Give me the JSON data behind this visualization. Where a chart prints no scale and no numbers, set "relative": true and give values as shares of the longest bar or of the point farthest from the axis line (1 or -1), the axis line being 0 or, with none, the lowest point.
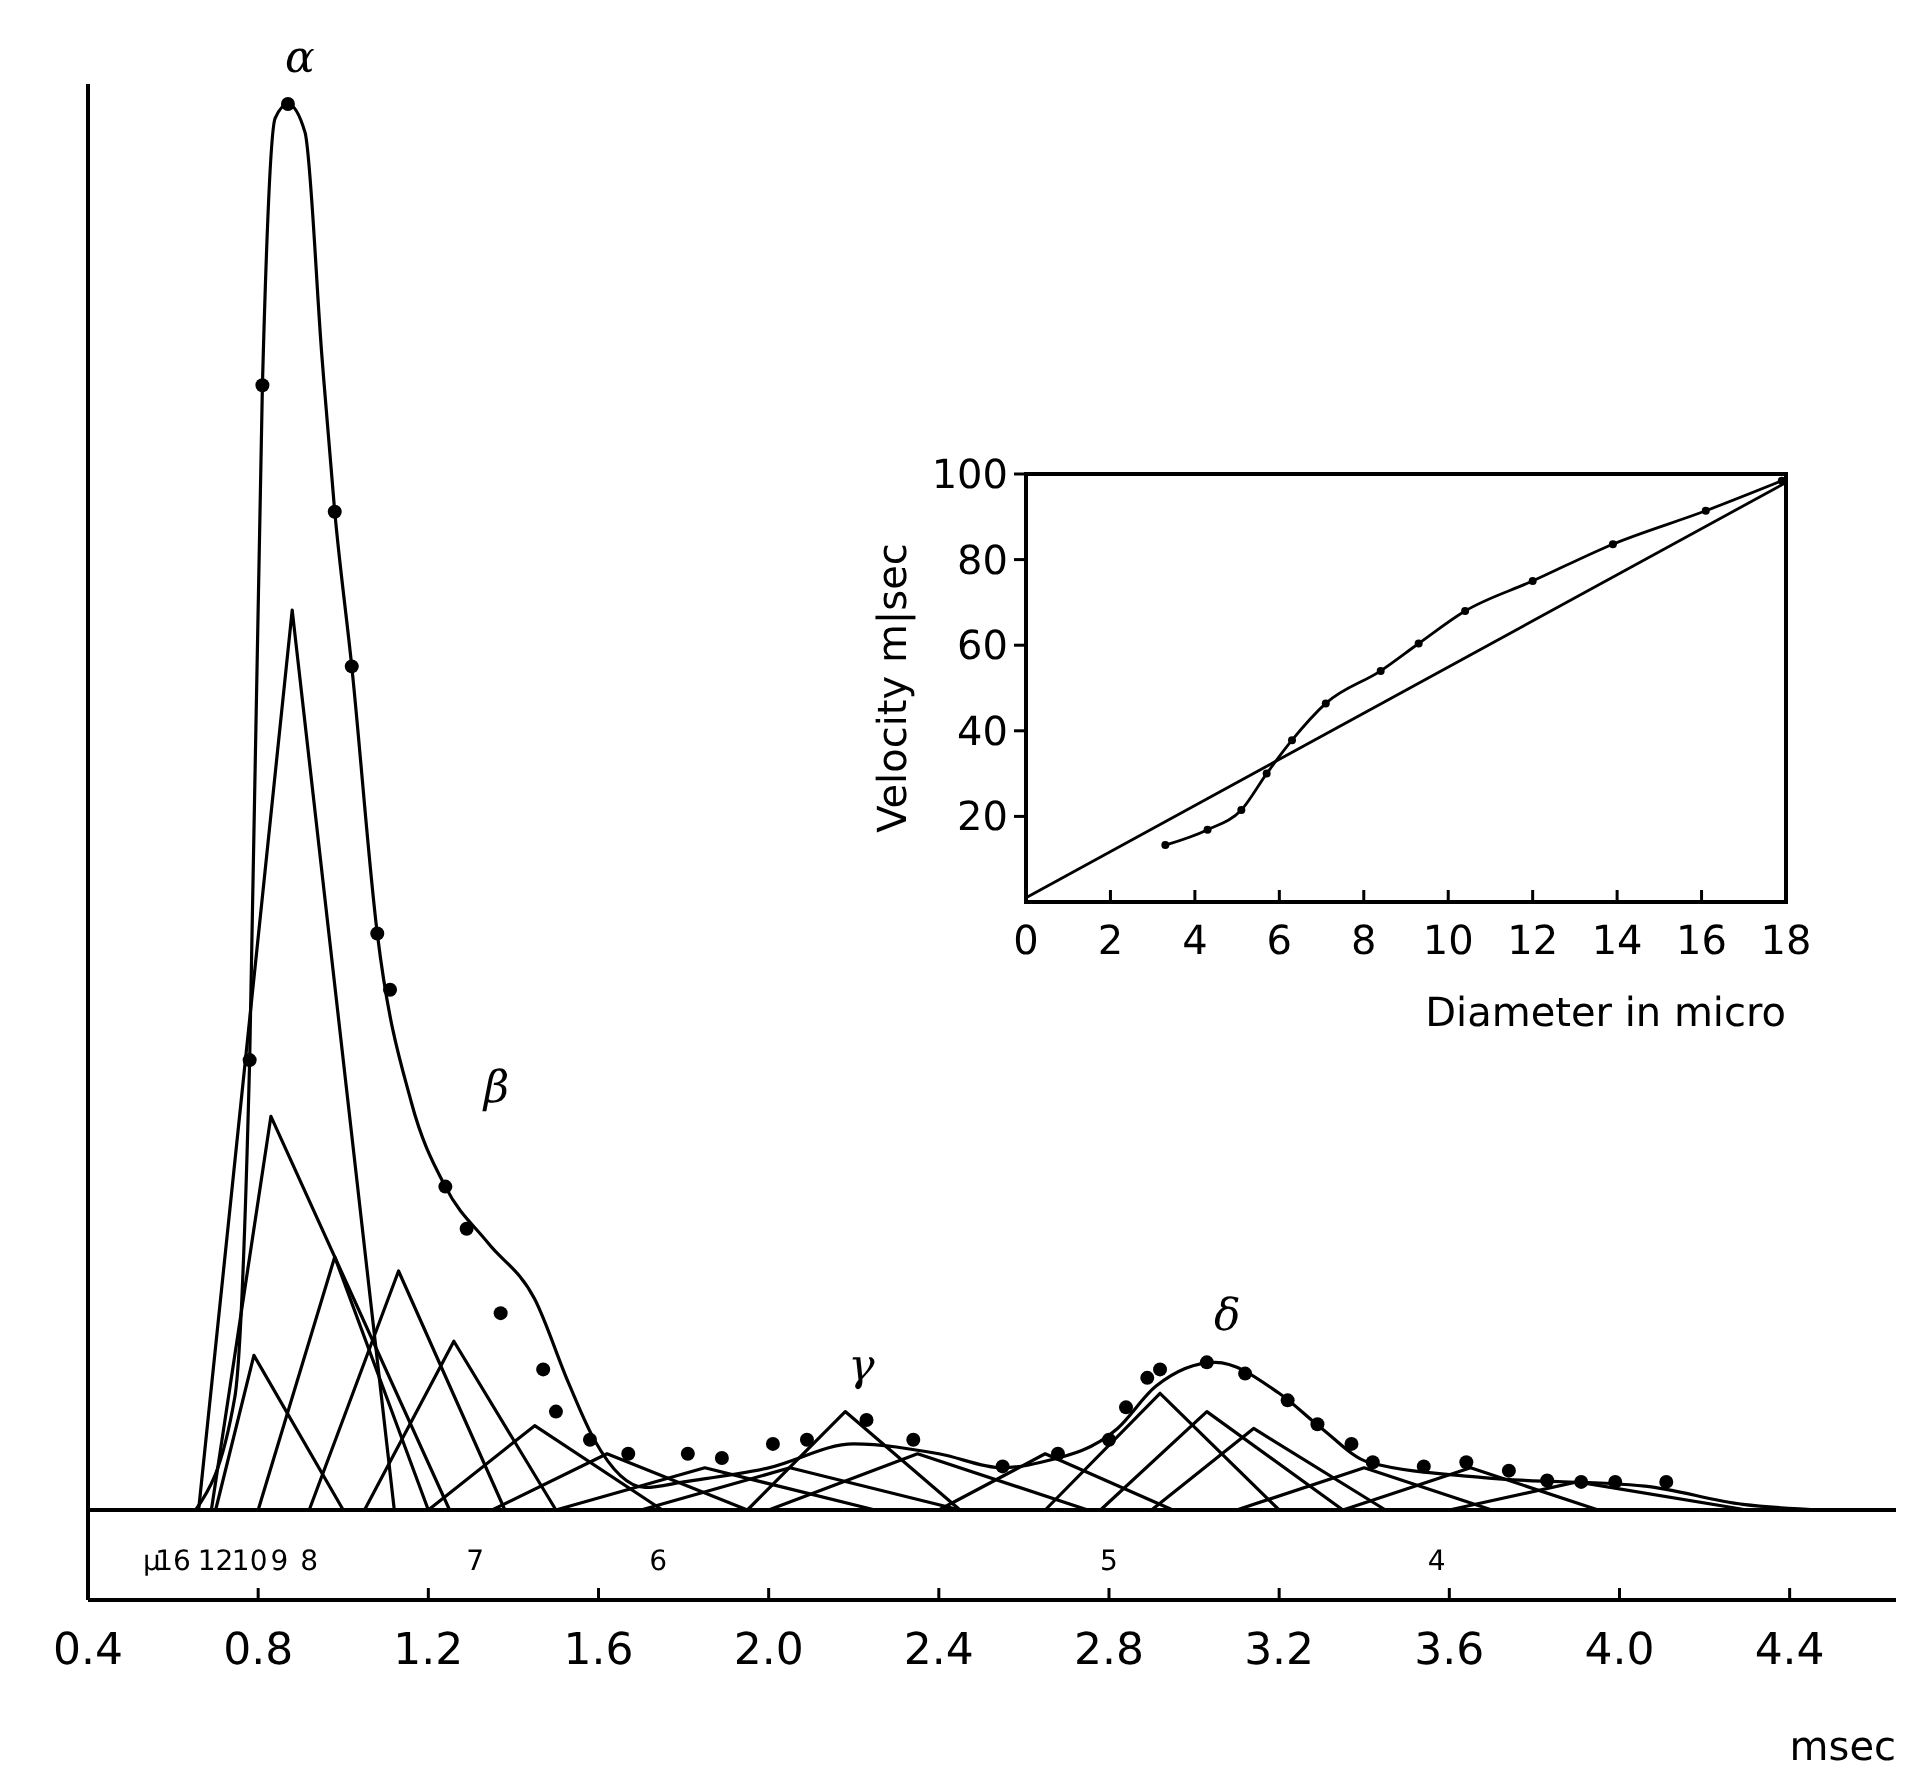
{
  "chart_data": [
    {
      "type": "line",
      "relative": true,
      "xlabel": "msec",
      "xlim": [
        0.4,
        4.65
      ],
      "xticks": [
        0.4,
        0.8,
        1.2,
        1.6,
        {
          "value": 2,
          "label": "2.0"
        },
        2.4,
        2.8,
        3.2,
        3.6,
        {
          "value": 4,
          "label": "4.0"
        },
        4.4
      ],
      "annotations": [
        {
          "text": "α",
          "x": 0.87,
          "y": 1.0
        },
        "β",
        {
          "text": "γ",
          "x": 2.19,
          "y": 0.07
        },
        {
          "text": "δ",
          "x": 3.05,
          "y": 0.105
        },
        "µ",
        "16",
        "12",
        "10",
        "9",
        "8",
        "7",
        "6",
        "5",
        "4"
      ],
      "series": [
        {
          "color": "#000000",
          "x": [
            0.653,
            0.745,
            0.78,
            0.81,
            0.84,
            0.87,
            0.91,
            0.95,
            0.98,
            1.02,
            1.08,
            1.16,
            1.24,
            1.34,
            1.45,
            1.53,
            1.59,
            1.71,
            1.8,
            2.0,
            2.2,
            2.4,
            2.55,
            2.64,
            2.82,
            2.91,
            3.05,
            3.2,
            3.3,
            3.41,
            3.68,
            4.06,
            4.29,
            4.48
          ],
          "values": [
            0,
            0.08,
            0.32,
            0.8,
            0.99,
            1.0,
            0.98,
            0.82,
            0.71,
            0.6,
            0.41,
            0.29,
            0.23,
            0.19,
            0.15,
            0.09,
            0.05,
            0.016,
            0.02,
            0.03,
            0.047,
            0.04,
            0.03,
            0.034,
            0.058,
            0.088,
            0.105,
            0.083,
            0.058,
            0.034,
            0.023,
            0.017,
            0.004,
            0
          ]
        },
        {
          "type": "scatter",
          "marker": "circle",
          "color": "#000000",
          "x": [
            0.78,
            0.81,
            0.87,
            0.98,
            1.02,
            1.08,
            1.11,
            1.24,
            1.29,
            1.37,
            1.47,
            1.5,
            1.58,
            1.67,
            1.81,
            1.89,
            2.01,
            2.09,
            2.23,
            2.34,
            2.55,
            2.68,
            2.8,
            2.84,
            2.89,
            2.92,
            3.03,
            3.12,
            3.22,
            3.29,
            3.37,
            3.42,
            3.54,
            3.64,
            3.74,
            3.83,
            3.91,
            3.99,
            4.11
          ],
          "values": [
            0.32,
            0.8,
            1.0,
            0.71,
            0.6,
            0.41,
            0.37,
            0.23,
            0.2,
            0.14,
            0.1,
            0.07,
            0.05,
            0.04,
            0.04,
            0.037,
            0.047,
            0.05,
            0.064,
            0.05,
            0.031,
            0.04,
            0.05,
            0.073,
            0.094,
            0.1,
            0.105,
            0.097,
            0.078,
            0.061,
            0.047,
            0.034,
            0.031,
            0.034,
            0.028,
            0.021,
            0.02,
            0.02,
            0.02
          ]
        },
        {
          "type": "line",
          "color": "#000000",
          "x": [
            0.66,
            0.88,
            1.12
          ],
          "values": [
            0,
            0.64,
            0
          ]
        },
        {
          "type": "line",
          "color": "#000000",
          "x": [
            0.69,
            0.83,
            1.25
          ],
          "values": [
            0,
            0.28,
            0
          ]
        },
        {
          "type": "line",
          "color": "#000000",
          "x": [
            0.7,
            0.79,
            1.0
          ],
          "values": [
            0,
            0.11,
            0
          ]
        },
        {
          "type": "line",
          "color": "#000000",
          "x": [
            0.8,
            0.98,
            1.2
          ],
          "values": [
            0,
            0.18,
            0
          ]
        },
        {
          "type": "line",
          "color": "#000000",
          "x": [
            0.92,
            1.13,
            1.38
          ],
          "values": [
            0,
            0.17,
            0
          ]
        },
        {
          "type": "line",
          "color": "#000000",
          "x": [
            1.05,
            1.26,
            1.5
          ],
          "values": [
            0,
            0.12,
            0
          ]
        },
        {
          "type": "line",
          "color": "#000000",
          "x": [
            1.2,
            1.45,
            1.75
          ],
          "values": [
            0,
            0.06,
            0
          ]
        },
        {
          "type": "line",
          "color": "#000000",
          "x": [
            1.35,
            1.62,
            1.95
          ],
          "values": [
            0,
            0.04,
            0
          ]
        },
        {
          "type": "line",
          "color": "#000000",
          "x": [
            1.5,
            1.85,
            2.25
          ],
          "values": [
            0,
            0.03,
            0
          ]
        },
        {
          "type": "line",
          "color": "#000000",
          "x": [
            1.7,
            2.05,
            2.45
          ],
          "values": [
            0,
            0.03,
            0
          ]
        },
        {
          "type": "line",
          "color": "#000000",
          "x": [
            1.95,
            2.18,
            2.45
          ],
          "values": [
            0,
            0.07,
            0
          ]
        },
        {
          "type": "line",
          "color": "#000000",
          "x": [
            2.0,
            2.35,
            2.75
          ],
          "values": [
            0,
            0.04,
            0
          ]
        },
        {
          "type": "line",
          "color": "#000000",
          "x": [
            2.4,
            2.65,
            2.95
          ],
          "values": [
            0,
            0.04,
            0
          ]
        },
        {
          "type": "line",
          "color": "#000000",
          "x": [
            2.65,
            2.92,
            3.2
          ],
          "values": [
            0,
            0.083,
            0
          ]
        },
        {
          "type": "line",
          "color": "#000000",
          "x": [
            2.78,
            3.03,
            3.35
          ],
          "values": [
            0,
            0.07,
            0
          ]
        },
        {
          "type": "line",
          "color": "#000000",
          "x": [
            2.9,
            3.14,
            3.45
          ],
          "values": [
            0,
            0.058,
            0
          ]
        },
        {
          "type": "line",
          "color": "#000000",
          "x": [
            3.1,
            3.4,
            3.7
          ],
          "values": [
            0,
            0.03,
            0
          ]
        },
        {
          "type": "line",
          "color": "#000000",
          "x": [
            3.35,
            3.65,
            3.95
          ],
          "values": [
            0,
            0.03,
            0
          ]
        },
        {
          "type": "line",
          "color": "#000000",
          "x": [
            3.6,
            3.9,
            4.3
          ],
          "values": [
            0,
            0.02,
            0
          ]
        }
      ]
    },
    {
      "type": "line",
      "xlabel": "Diameter in micro",
      "ylabel": "Velocity m|sec",
      "xlim": [
        0,
        18
      ],
      "ylim": [
        0,
        100
      ],
      "xticks": [
        0,
        2,
        4,
        6,
        8,
        10,
        12,
        14,
        16,
        18
      ],
      "yticks": [
        20,
        40,
        60,
        80,
        100
      ],
      "series": [
        {
          "color": "#000000",
          "x": [
            0,
            18
          ],
          "values": [
            1,
            98
          ]
        },
        {
          "marker": "circle",
          "color": "#000000",
          "x": [
            3.3,
            4.3,
            5.1,
            5.7,
            6.3,
            7.1,
            8.4,
            9.3,
            10.4,
            12.0,
            13.9,
            16.1,
            17.9
          ],
          "values": [
            13.3,
            16.9,
            21.5,
            30,
            37.8,
            46.4,
            54,
            60.4,
            68,
            75,
            83.6,
            91.4,
            98.4
          ]
        }
      ]
    }
  ]
}
